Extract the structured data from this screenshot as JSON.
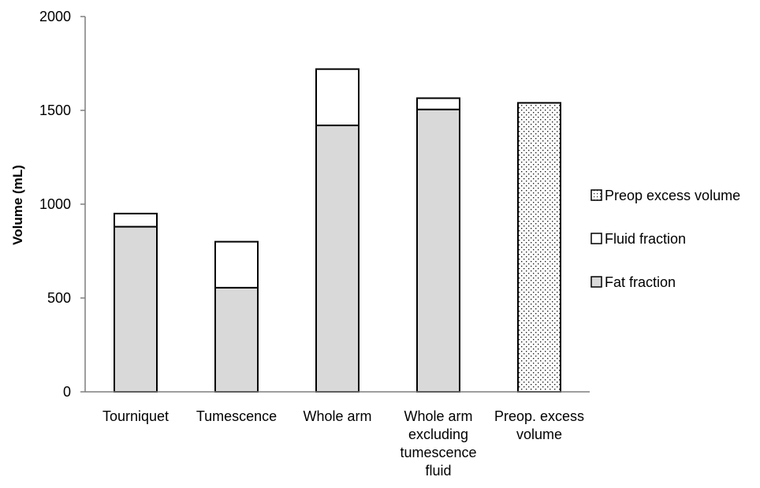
{
  "chart_data": {
    "type": "bar",
    "stacked": true,
    "categories": [
      [
        "Tourniquet"
      ],
      [
        "Tumescence"
      ],
      [
        "Whole arm"
      ],
      [
        "Whole arm",
        "excluding",
        "tumescence",
        "fluid"
      ],
      [
        "Preop. excess",
        "volume"
      ]
    ],
    "series": [
      {
        "name": "Fat fraction",
        "values": [
          880,
          555,
          1420,
          1505,
          0
        ],
        "fill": "#d9d9d9"
      },
      {
        "name": "Fluid fraction",
        "values": [
          70,
          245,
          300,
          60,
          0
        ],
        "fill": "#ffffff"
      },
      {
        "name": "Preop excess volume",
        "values": [
          0,
          0,
          0,
          0,
          1540
        ],
        "fill": "dotted"
      }
    ],
    "xlabel": "",
    "ylabel": "Volume (mL)",
    "ylim": [
      0,
      2000
    ],
    "yticks": [
      "0",
      "500",
      "1000",
      "1500",
      "2000"
    ],
    "legend": {
      "placement": "right",
      "entries": [
        "Preop excess volume",
        "Fluid fraction",
        "Fat fraction"
      ]
    },
    "grid": false
  }
}
